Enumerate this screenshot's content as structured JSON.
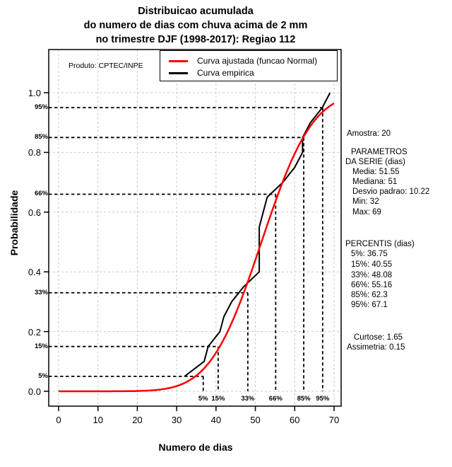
{
  "title": {
    "line1": "Distribuicao acumulada",
    "line2": "do numero de dias com chuva acima de 2 mm",
    "line3": "no trimestre DJF (1998-2017): Regiao 112"
  },
  "watermark": "Produto: CPTEC/INPE",
  "axes": {
    "xlabel": "Numero de dias",
    "ylabel": "Probabilidade"
  },
  "legend": {
    "items": [
      {
        "label": "Curva ajustada (funcao Normal)",
        "color": "#ff0000"
      },
      {
        "label": "Curva empirica",
        "color": "#000000"
      }
    ]
  },
  "stats_panel": {
    "lines": [
      "Amostra: 20",
      "PARAMETROS",
      "DA SERIE (dias)",
      "Media: 51.55",
      "Mediana: 51",
      "Desvio padrao: 10.22",
      "Min: 32",
      "Max: 69",
      "PERCENTIS (dias)",
      "5%: 36.75",
      "15%: 40.55",
      "33%: 48.08",
      "66%: 55.16",
      "85%: 62.3",
      "95%: 67.1",
      "Curtose: 1.65",
      "Assimetria: 0.15"
    ]
  },
  "chart_data": {
    "type": "line",
    "title": "Distribuicao acumulada do numero de dias com chuva acima de 2 mm no trimestre DJF (1998-2017): Regiao 112",
    "xlabel": "Numero de dias",
    "ylabel": "Probabilidade",
    "xlim": [
      0,
      70
    ],
    "ylim": [
      0,
      1
    ],
    "grid": true,
    "legend_position": "top-right",
    "x_ticks": [
      0,
      10,
      20,
      30,
      40,
      50,
      60,
      70
    ],
    "x_tick_labels": [
      "0",
      "10",
      "20",
      "30",
      "40",
      "50",
      "60",
      "70"
    ],
    "y_ticks": [
      0.0,
      0.2,
      0.4,
      0.6,
      0.8,
      1.0
    ],
    "y_tick_labels": [
      "0.0",
      "0.2",
      "0.4",
      "0.6",
      "0.8",
      "1.0"
    ],
    "series": [
      {
        "name": "Curva ajustada (funcao Normal)",
        "color": "#ff0000",
        "model": "normal_cdf",
        "mean": 51.55,
        "sd": 10.22
      },
      {
        "name": "Curva empirica",
        "color": "#000000",
        "points": [
          [
            32,
            0.05
          ],
          [
            37,
            0.1
          ],
          [
            38,
            0.15
          ],
          [
            41,
            0.2
          ],
          [
            42,
            0.25
          ],
          [
            44,
            0.3
          ],
          [
            47,
            0.35
          ],
          [
            51,
            0.4
          ],
          [
            51,
            0.45
          ],
          [
            51,
            0.5
          ],
          [
            51,
            0.55
          ],
          [
            52,
            0.6
          ],
          [
            53,
            0.65
          ],
          [
            57,
            0.7
          ],
          [
            60,
            0.75
          ],
          [
            62,
            0.8
          ],
          [
            62,
            0.85
          ],
          [
            64,
            0.9
          ],
          [
            67,
            0.95
          ],
          [
            69,
            1.0
          ]
        ]
      }
    ],
    "percentiles": [
      {
        "label": "5%",
        "p": 0.05,
        "value": 36.75
      },
      {
        "label": "15%",
        "p": 0.15,
        "value": 40.55
      },
      {
        "label": "33%",
        "p": 0.33,
        "value": 48.08
      },
      {
        "label": "66%",
        "p": 0.66,
        "value": 55.16
      },
      {
        "label": "85%",
        "p": 0.85,
        "value": 62.3
      },
      {
        "label": "95%",
        "p": 0.95,
        "value": 67.1
      }
    ],
    "stats": {
      "amostra": 20,
      "media": 51.55,
      "mediana": 51,
      "desvio_padrao": 10.22,
      "min": 32,
      "max": 69,
      "curtose": 1.65,
      "assimetria": 0.15
    }
  }
}
